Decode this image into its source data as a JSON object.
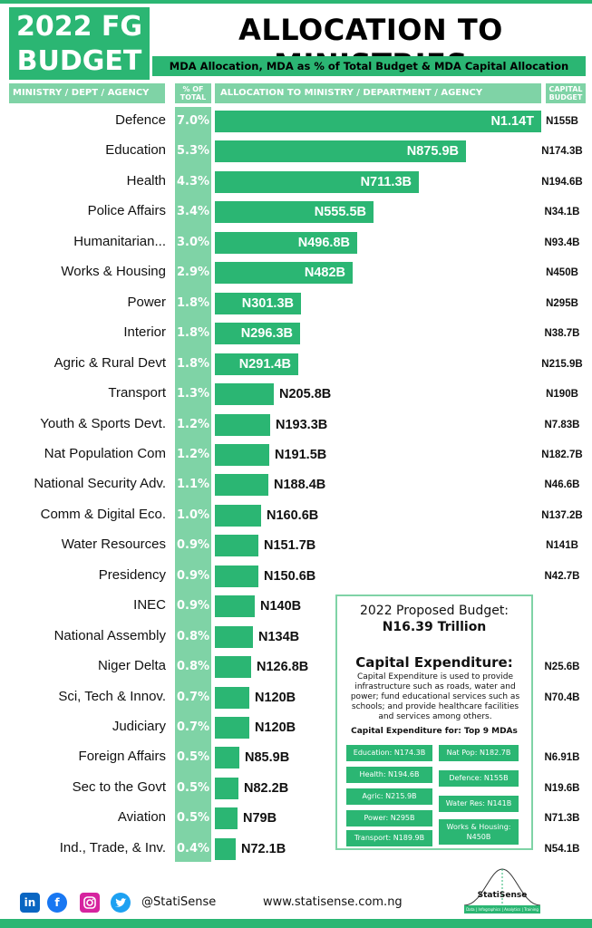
{
  "header": {
    "brand_line1": "2022 FG",
    "brand_line2": "BUDGET",
    "title": "ALLOCATION TO MINISTRIES",
    "subtitle": "MDA Allocation, MDA as % of Total Budget & MDA Capital Allocation"
  },
  "columns": {
    "ministry": "MINISTRY / DEPT / AGENCY",
    "pct_line1": "% OF",
    "pct_line2": "TOTAL",
    "allocation": "ALLOCATION TO MINISTRY / DEPARTMENT / AGENCY",
    "capital_line1": "CAPITAL",
    "capital_line2": "BUDGET"
  },
  "chart_data": {
    "type": "bar",
    "title": "ALLOCATION TO MINISTRIES",
    "xlabel": "ALLOCATION TO MINISTRY / DEPARTMENT / AGENCY",
    "ylabel": "MINISTRY / DEPT / AGENCY",
    "categories": [
      "Defence",
      "Education",
      "Health",
      "Police Affairs",
      "Humanitarian...",
      "Works & Housing",
      "Power",
      "Interior",
      "Agric & Rural Devt",
      "Transport",
      "Youth & Sports Devt.",
      "Nat Population Com",
      "National Security Adv.",
      "Comm & Digital Eco.",
      "Water Resources",
      "Presidency",
      "INEC",
      "National Assembly",
      "Niger Delta",
      "Sci, Tech & Innov.",
      "Judiciary",
      "Foreign Affairs",
      "Sec to the Govt",
      "Aviation",
      "Ind., Trade, & Inv."
    ],
    "values_billion": [
      1140,
      875.9,
      711.3,
      555.5,
      496.8,
      482,
      301.3,
      296.3,
      291.4,
      205.8,
      193.3,
      191.5,
      188.4,
      160.6,
      151.7,
      150.6,
      140,
      134,
      126.8,
      120,
      120,
      85.9,
      82.2,
      79,
      72.1
    ],
    "value_labels": [
      "N1.14T",
      "N875.9B",
      "N711.3B",
      "N555.5B",
      "N496.8B",
      "N482B",
      "N301.3B",
      "N296.3B",
      "N291.4B",
      "N205.8B",
      "N193.3B",
      "N191.5B",
      "N188.4B",
      "N160.6B",
      "N151.7B",
      "N150.6B",
      "N140B",
      "N134B",
      "N126.8B",
      "N120B",
      "N120B",
      "N85.9B",
      "N82.2B",
      "N79B",
      "N72.1B"
    ],
    "pct_of_total": [
      "7.0%",
      "5.3%",
      "4.3%",
      "3.4%",
      "3.0%",
      "2.9%",
      "1.8%",
      "1.8%",
      "1.8%",
      "1.3%",
      "1.2%",
      "1.2%",
      "1.1%",
      "1.0%",
      "0.9%",
      "0.9%",
      "0.9%",
      "0.8%",
      "0.8%",
      "0.7%",
      "0.7%",
      "0.5%",
      "0.5%",
      "0.5%",
      "0.4%"
    ],
    "capital_budget": [
      "N155B",
      "N174.3B",
      "N194.6B",
      "N34.1B",
      "N93.4B",
      "N450B",
      "N295B",
      "N38.7B",
      "N215.9B",
      "N190B",
      "N7.83B",
      "N182.7B",
      "N46.6B",
      "N137.2B",
      "N141B",
      "N42.7B",
      "",
      "",
      "N25.6B",
      "N70.4B",
      "",
      "N6.91B",
      "N19.6B",
      "N71.3B",
      "N54.1B"
    ],
    "xlim": [
      0,
      1140
    ]
  },
  "summary": {
    "title": "2022 Proposed Budget:",
    "total": "N16.39 Trillion",
    "capex_title": "Capital Expenditure:",
    "capex_desc": "Capital Expenditure is used to provide infrastructure such as roads, water and power; fund educational services such as schools; and provide healthcare facilities and services among others.",
    "top_title": "Capital Expenditure for: Top 9 MDAs",
    "chips": [
      "Education: N174.3B",
      "Nat Pop: N182.7B",
      "Health: N194.6B",
      "Defence: N155B",
      "Agric: N215.9B",
      "Water Res: N141B",
      "Power: N295B",
      "Works & Housing: N450B",
      "Transport: N189.9B"
    ]
  },
  "footer": {
    "handle": "@StatiSense",
    "website": "www.statisense.com.ng",
    "logo_text": "StatiSense",
    "logo_tag": "Data | Infographics | Analytics | Training"
  },
  "colors": {
    "accent": "#2bb673",
    "light": "#7fd3a6"
  }
}
